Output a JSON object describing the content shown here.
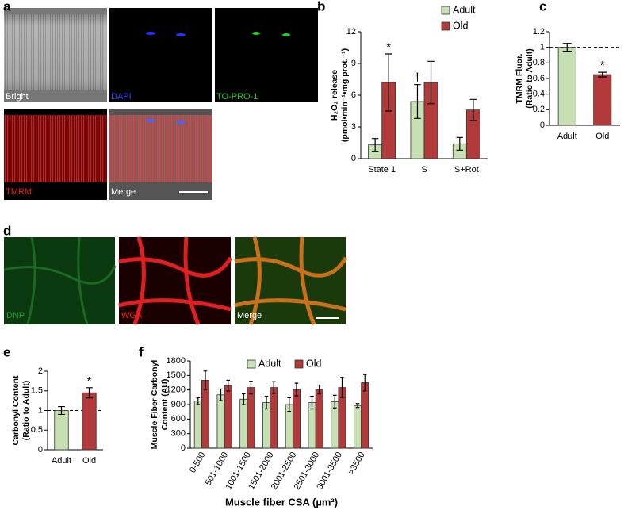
{
  "panel_letters": [
    "a",
    "b",
    "c",
    "d",
    "e",
    "f"
  ],
  "image_labels_a": [
    "Bright",
    "DAPI",
    "TO-PRO-1",
    "TMRM",
    "Merge"
  ],
  "image_labels_d": [
    "DNP",
    "WGA",
    "Merge"
  ],
  "chart_data": [
    {
      "type": "bar",
      "ylabel": [
        "H₂O₂ release",
        "(pmol•min⁻¹•mg prot.⁻¹)"
      ],
      "categories": [
        "State 1",
        "S",
        "S+Rot"
      ],
      "series": [
        {
          "name": "Adult",
          "color": "#c6e0b4",
          "values": [
            1.3,
            5.4,
            1.4
          ],
          "errors": [
            0.6,
            1.6,
            0.6
          ]
        },
        {
          "name": "Old",
          "color": "#b23a3a",
          "values": [
            7.2,
            7.2,
            4.6
          ],
          "errors": [
            2.7,
            2.0,
            1.0
          ]
        }
      ],
      "ylim": [
        0,
        12
      ],
      "yticks": [
        0,
        3,
        6,
        9,
        12
      ],
      "annotations": [
        "*",
        "†"
      ],
      "legend": "upper right"
    },
    {
      "type": "bar",
      "ylabel": [
        "TMRM Fluor.",
        "(Ratio to Adult)"
      ],
      "categories": [
        "Adult",
        "Old"
      ],
      "series": [
        {
          "colors": [
            "#c6e0b4",
            "#b23a3a"
          ],
          "values": [
            1.0,
            0.65
          ],
          "errors": [
            0.05,
            0.03
          ]
        }
      ],
      "ylim": [
        0,
        1.2
      ],
      "yticks": [
        0,
        0.2,
        0.4,
        0.6,
        0.8,
        1,
        1.2
      ],
      "reference_line": 1,
      "annotations": [
        "*"
      ]
    },
    {
      "type": "bar",
      "ylabel": [
        "Carbonyl Content",
        "(Ratio to Adult)"
      ],
      "categories": [
        "Adult",
        "Old"
      ],
      "series": [
        {
          "colors": [
            "#c6e0b4",
            "#b23a3a"
          ],
          "values": [
            1.0,
            1.45
          ],
          "errors": [
            0.1,
            0.13
          ]
        }
      ],
      "ylim": [
        0,
        2
      ],
      "yticks": [
        0,
        0.5,
        1,
        1.5,
        2
      ],
      "reference_line": 1,
      "annotations": [
        "*"
      ]
    },
    {
      "type": "bar",
      "ylabel": [
        "Muscle Fiber Carbonyl",
        "Content (AU)"
      ],
      "xlabel": "Muscle fiber CSA (µm²)",
      "categories": [
        "0-500",
        "501-1000",
        "1001-1500",
        "1501-2000",
        "2001-2500",
        "2501-3000",
        "3001-3500",
        ">3500"
      ],
      "series": [
        {
          "name": "Adult",
          "color": "#c6e0b4",
          "values": [
            970,
            1100,
            1010,
            940,
            900,
            940,
            960,
            880
          ],
          "errors": [
            70,
            120,
            110,
            130,
            140,
            130,
            130,
            40
          ]
        },
        {
          "name": "Old",
          "color": "#b23a3a",
          "values": [
            1400,
            1290,
            1250,
            1250,
            1210,
            1210,
            1250,
            1350
          ],
          "errors": [
            190,
            110,
            130,
            120,
            130,
            90,
            210,
            170
          ]
        }
      ],
      "ylim": [
        0,
        1800
      ],
      "yticks": [
        0,
        300,
        600,
        900,
        1200,
        1500,
        1800
      ],
      "legend": "upper center"
    }
  ]
}
